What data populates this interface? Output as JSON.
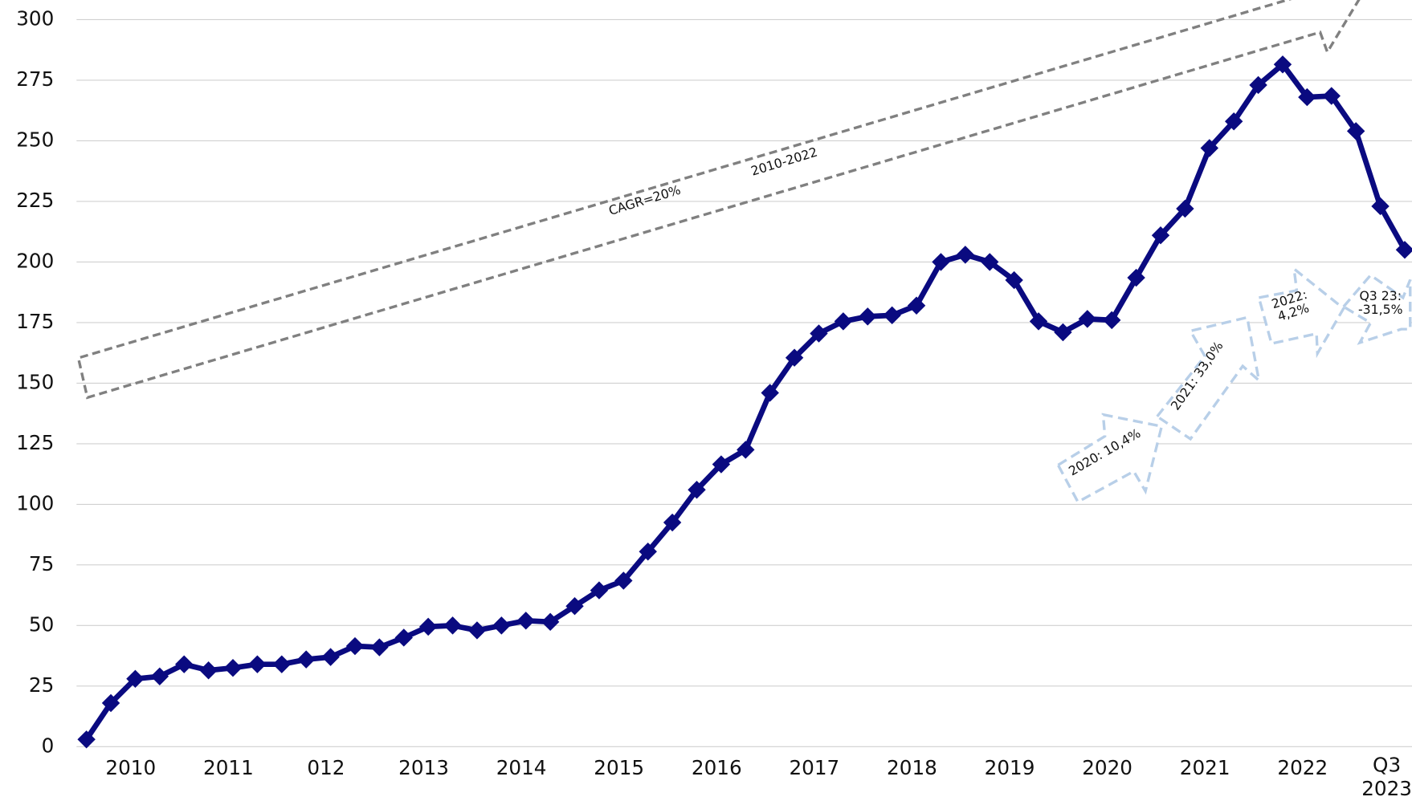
{
  "chart_data": {
    "type": "line",
    "categories": [
      null,
      null,
      "2010",
      null,
      null,
      null,
      "2011",
      null,
      null,
      null,
      "012",
      null,
      null,
      null,
      "2013",
      null,
      null,
      null,
      "2014",
      null,
      null,
      null,
      "2015",
      null,
      null,
      null,
      "2016",
      null,
      null,
      null,
      "2017",
      null,
      null,
      null,
      "2018",
      null,
      null,
      null,
      "2019",
      null,
      null,
      null,
      "2020",
      null,
      null,
      null,
      "2021",
      null,
      null,
      null,
      "2022",
      null,
      null,
      null,
      "Q3 2023"
    ],
    "series": [
      {
        "color": "#0a0a80",
        "values": [
          3,
          18,
          28,
          29,
          34,
          31.5,
          32.5,
          34,
          34,
          36,
          37,
          41.5,
          41,
          45,
          49.5,
          50,
          48,
          50,
          52,
          51.5,
          58,
          64.5,
          68.5,
          80.5,
          92.5,
          106,
          116.5,
          122.5,
          146,
          160.5,
          170.5,
          175.5,
          177.5,
          178,
          182,
          200,
          203,
          200,
          192.5,
          175.5,
          171,
          176.5,
          176,
          193.5,
          211,
          222,
          247,
          258,
          273,
          281.5,
          268,
          268.5,
          254,
          223,
          205
        ]
      }
    ],
    "ylim": [
      0,
      300
    ],
    "yticks": [
      0,
      25,
      50,
      75,
      100,
      125,
      150,
      175,
      200,
      225,
      250,
      275,
      300
    ],
    "grid": true,
    "annotations": [
      "CAGR=20%",
      "2010-2022",
      "2020: 10,4%",
      "2021: 33,0%",
      "2022: 4,2%",
      "Q3 23: -31,5%"
    ]
  }
}
